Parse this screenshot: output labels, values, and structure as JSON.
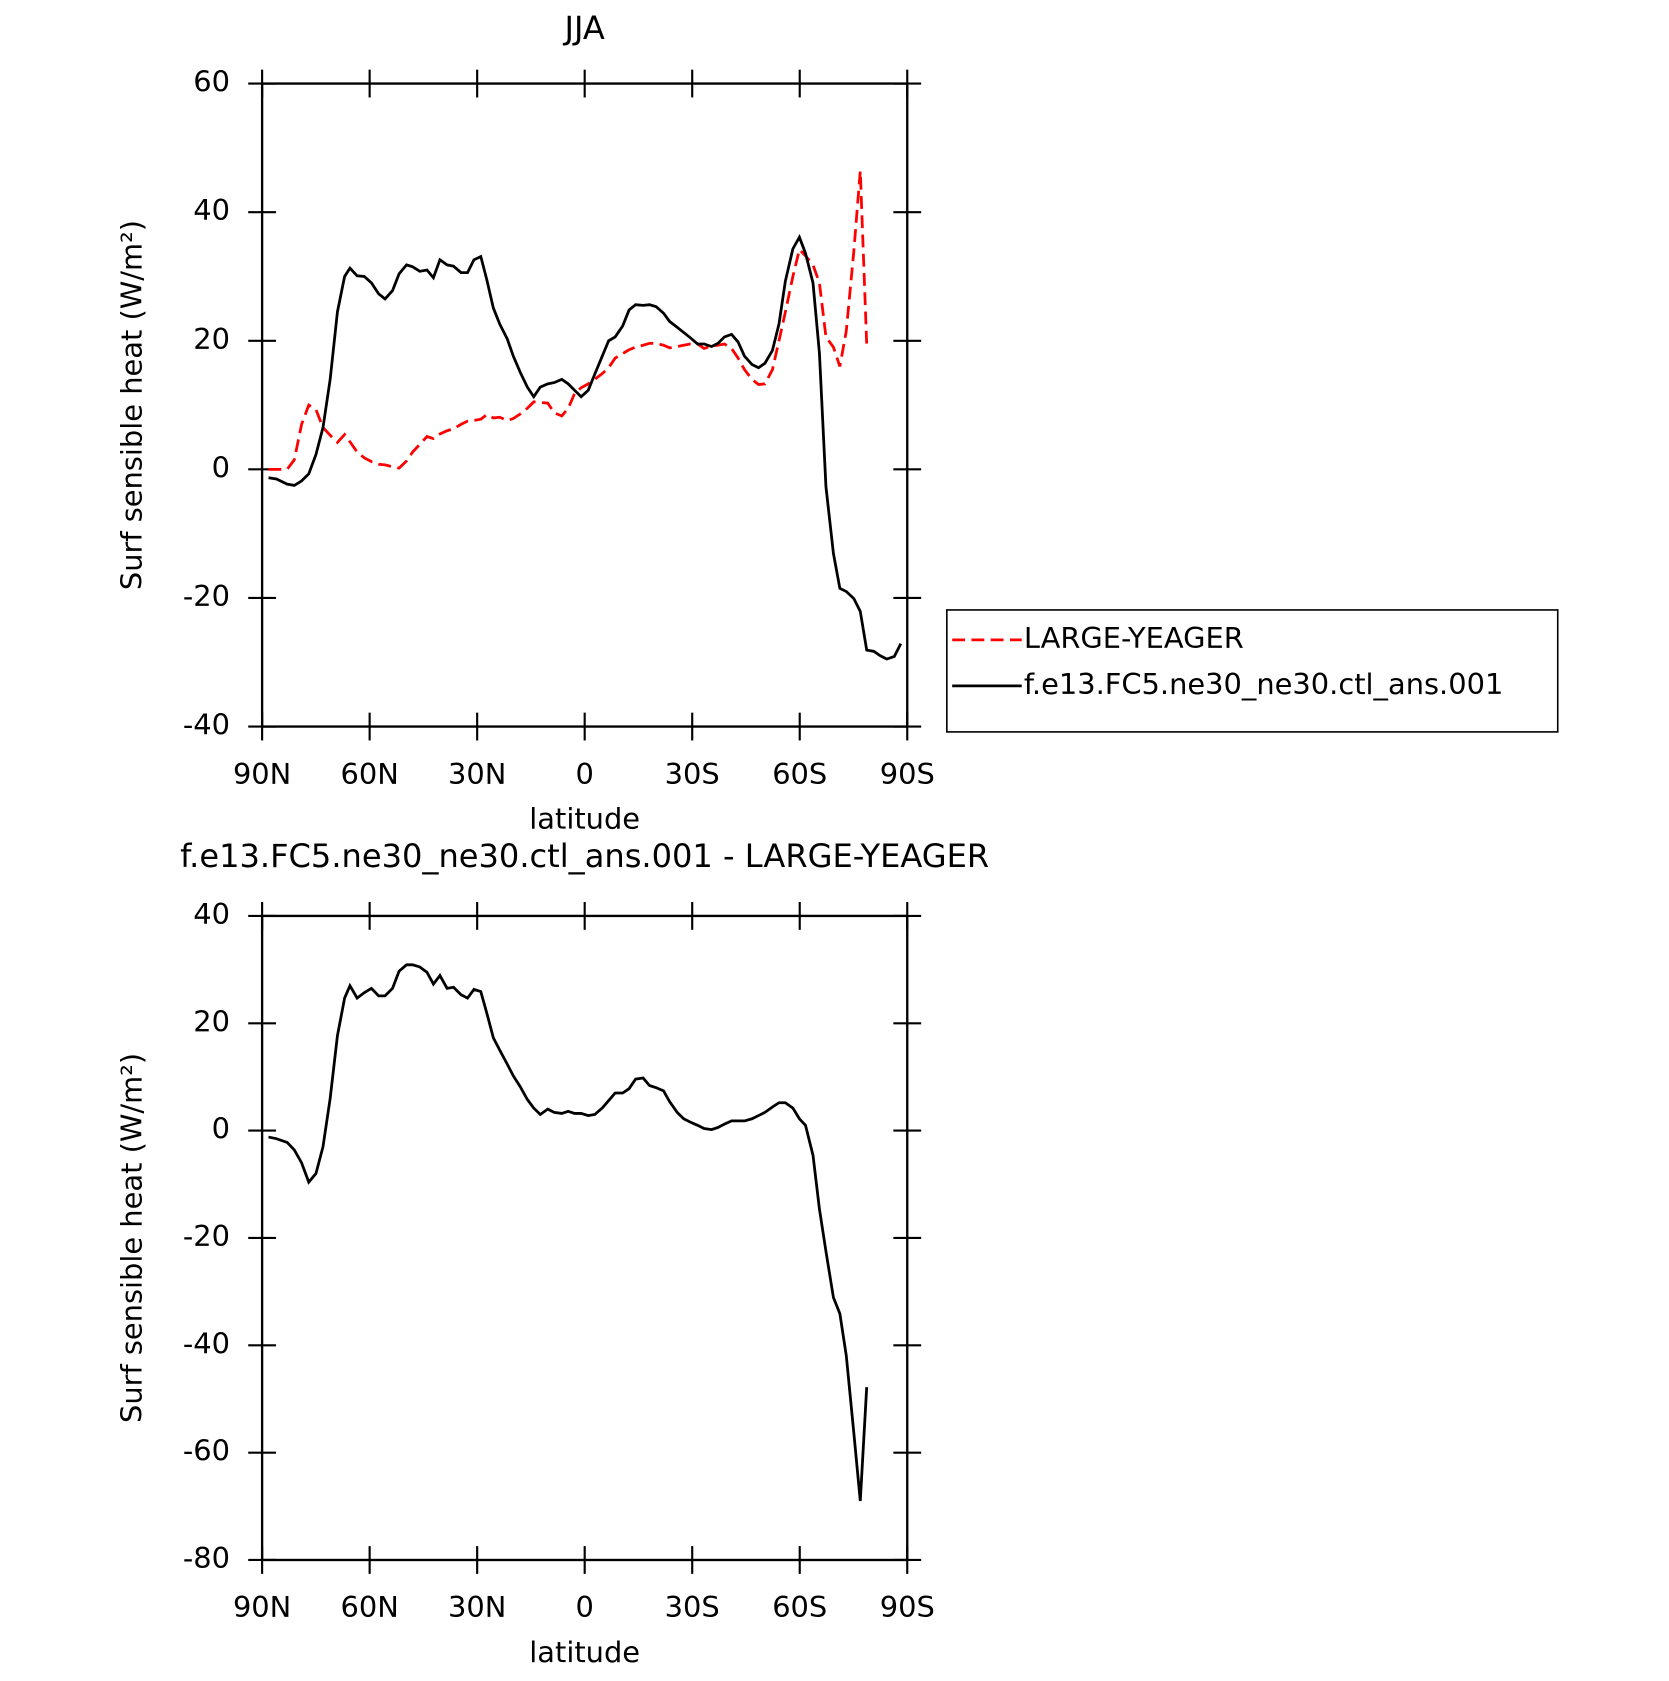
{
  "chart_data": [
    {
      "type": "line",
      "title": "JJA",
      "xlabel": "latitude",
      "ylabel": "Surf sensible heat (W/m²)",
      "xlim": [
        90,
        -90
      ],
      "ylim": [
        -40,
        60
      ],
      "xticks": [
        {
          "value": 90,
          "label": "90N"
        },
        {
          "value": 60,
          "label": "60N"
        },
        {
          "value": 30,
          "label": "30N"
        },
        0,
        {
          "value": -30,
          "label": "30S"
        },
        {
          "value": -60,
          "label": "60S"
        },
        {
          "value": -90,
          "label": "90S"
        }
      ],
      "yticks": [
        -40,
        -20,
        0,
        20,
        40,
        60
      ],
      "legend": "outside-right",
      "x": [
        88.2,
        86,
        83,
        81,
        79,
        77,
        75,
        73,
        71,
        69,
        67,
        65.5,
        63.5,
        61.5,
        59.5,
        57.5,
        55.7,
        53.6,
        51.8,
        49.7,
        48,
        46,
        44,
        42.2,
        40.4,
        38.4,
        36.6,
        34.5,
        32.7,
        30.9,
        29,
        27.3,
        25.5,
        23.7,
        21.6,
        19.9,
        18,
        16,
        14.2,
        12.4,
        10.3,
        8.5,
        6.4,
        4.6,
        2.8,
        1,
        -1,
        -2.8,
        -4.9,
        -6.7,
        -8.5,
        -10.6,
        -12.4,
        -14.2,
        -16.3,
        -18.1,
        -19.9,
        -22,
        -23.7,
        -25.8,
        -27.6,
        -29.4,
        -31.5,
        -33.3,
        -35.4,
        -37.2,
        -39,
        -41,
        -42.8,
        -44.6,
        -46.7,
        -48.5,
        -50.3,
        -52.4,
        -54.2,
        -56,
        -58.1,
        -59.9,
        -61.6,
        -63.7,
        -65.5,
        -67.3,
        -69.4,
        -71.2,
        -73,
        -75.1,
        -76.9,
        -78.7,
        -80.7,
        -82.5,
        -84.3,
        -86.4,
        -88.2
      ],
      "series": [
        {
          "name": "LARGE-YEAGER",
          "color": "#ff0000",
          "linestyle": "dashed",
          "values": [
            0,
            0,
            0,
            1.5,
            7,
            10,
            9.3,
            6.5,
            5.3,
            4.2,
            5.4,
            4.3,
            2.7,
            1.8,
            1.2,
            0.8,
            0.7,
            0.4,
            0.2,
            1.3,
            2.7,
            3.9,
            5.1,
            4.8,
            5.5,
            6,
            6.3,
            7,
            7.5,
            7.6,
            7.8,
            8.5,
            8,
            8.1,
            7.6,
            7.9,
            8.6,
            9.5,
            10.5,
            10.4,
            10.3,
            8.8,
            8.3,
            9.5,
            11.8,
            12.7,
            13.3,
            14,
            14.9,
            15.8,
            17.3,
            18,
            18.6,
            19,
            19.3,
            19.6,
            19.6,
            19.3,
            18.9,
            19.1,
            19.3,
            19.5,
            19.5,
            18.8,
            19.2,
            19.3,
            19.5,
            18.8,
            17.3,
            15.5,
            14,
            13.2,
            13.3,
            15.5,
            20,
            24.5,
            30,
            34.2,
            33.2,
            31.8,
            29,
            20.6,
            19,
            16,
            21.5,
            34,
            46.4,
            19.5,
            null,
            null,
            null,
            null,
            null
          ]
        },
        {
          "name": "f.e13.FC5.ne30_ne30.ctl_ans.001",
          "color": "#000000",
          "linestyle": "solid",
          "values": [
            -1.3,
            -1.5,
            -2.3,
            -2.5,
            -1.8,
            -0.7,
            2.3,
            6.5,
            14,
            24.5,
            30,
            31.3,
            30.1,
            30,
            29,
            27.3,
            26.5,
            27.8,
            30.4,
            31.8,
            31.5,
            30.8,
            31,
            29.8,
            32.6,
            31.8,
            31.6,
            30.6,
            30.6,
            32.6,
            33.1,
            29.5,
            25.1,
            22.6,
            20.3,
            17.6,
            15.1,
            12.8,
            11.3,
            12.8,
            13.3,
            13.5,
            14,
            13.3,
            12.3,
            11.3,
            12.3,
            14.8,
            17.6,
            20,
            20.6,
            22.3,
            24.8,
            25.6,
            25.5,
            25.6,
            25.3,
            24.3,
            23,
            22.1,
            21.3,
            20.5,
            19.5,
            19.5,
            19.1,
            19.6,
            20.6,
            21,
            19.8,
            17.6,
            16.3,
            15.8,
            16.5,
            18.5,
            22.6,
            29.3,
            34.3,
            36.1,
            33.6,
            29,
            18.1,
            -2.7,
            -13.1,
            -18.5,
            -19,
            -20.1,
            -22.1,
            -28.1,
            -28.3,
            -29,
            -29.5,
            -29.1,
            -27.1
          ]
        }
      ]
    },
    {
      "type": "line",
      "title": "f.e13.FC5.ne30_ne30.ctl_ans.001 - LARGE-YEAGER",
      "xlabel": "latitude",
      "ylabel": "Surf sensible heat (W/m²)",
      "xlim": [
        90,
        -90
      ],
      "ylim": [
        -80,
        40
      ],
      "xticks": [
        {
          "value": 90,
          "label": "90N"
        },
        {
          "value": 60,
          "label": "60N"
        },
        {
          "value": 30,
          "label": "30N"
        },
        0,
        {
          "value": -30,
          "label": "30S"
        },
        {
          "value": -60,
          "label": "60S"
        },
        {
          "value": -90,
          "label": "90S"
        }
      ],
      "yticks": [
        -80,
        -60,
        -40,
        -20,
        0,
        20,
        40
      ],
      "x": [
        88.2,
        86,
        83,
        81,
        79,
        77,
        75,
        73,
        71,
        69,
        67,
        65.5,
        63.5,
        61.5,
        59.5,
        57.5,
        55.7,
        53.6,
        51.8,
        49.7,
        48,
        46,
        44,
        42.2,
        40.4,
        38.4,
        36.6,
        34.5,
        32.7,
        30.9,
        29,
        27.3,
        25.5,
        23.7,
        21.6,
        19.9,
        18,
        16,
        14.2,
        12.4,
        10.3,
        8.5,
        6.4,
        4.6,
        2.8,
        1,
        -1,
        -2.8,
        -4.9,
        -6.7,
        -8.5,
        -10.6,
        -12.4,
        -14.2,
        -16.3,
        -18.1,
        -19.9,
        -22,
        -23.7,
        -25.8,
        -27.6,
        -29.4,
        -31.5,
        -33.3,
        -35.4,
        -37.2,
        -39,
        -41,
        -42.8,
        -44.6,
        -46.7,
        -48.5,
        -50.3,
        -52.4,
        -54.2,
        -56,
        -58.1,
        -59.9,
        -61.6,
        -63.7,
        -65.5,
        -67.3,
        -69.4,
        -71.2,
        -73,
        -75.1,
        -76.9,
        -78.7,
        -80.7,
        -82.5,
        -84.3,
        -86.4,
        -88.2
      ],
      "series": [
        {
          "color": "#000000",
          "linestyle": "solid",
          "values": [
            -1.2,
            -1.5,
            -2.2,
            -3.6,
            -6,
            -9.6,
            -8,
            -3,
            6,
            17.7,
            24.7,
            27,
            24.7,
            25.7,
            26.5,
            25.1,
            25.1,
            26.5,
            29.7,
            30.9,
            30.9,
            30.5,
            29.5,
            27.3,
            28.9,
            26.5,
            26.7,
            25.3,
            24.7,
            26.3,
            25.9,
            21.9,
            17.3,
            15,
            12.4,
            10.2,
            8.2,
            5.8,
            4.2,
            3,
            4,
            3.4,
            3.2,
            3.6,
            3.2,
            3.2,
            2.8,
            3,
            4.2,
            5.6,
            7,
            7,
            7.8,
            9.6,
            9.8,
            8.4,
            8,
            7.4,
            5.4,
            3.4,
            2.2,
            1.6,
            1,
            0.4,
            0.2,
            0.6,
            1.2,
            1.8,
            1.8,
            1.8,
            2.2,
            2.8,
            3.4,
            4.4,
            5.2,
            5.2,
            4.2,
            2.2,
            1,
            -4.6,
            -14.6,
            -22.5,
            -31.1,
            -34.1,
            -41.9,
            -56.4,
            -69,
            -47.8,
            null,
            null,
            null,
            null,
            null
          ]
        }
      ]
    }
  ]
}
